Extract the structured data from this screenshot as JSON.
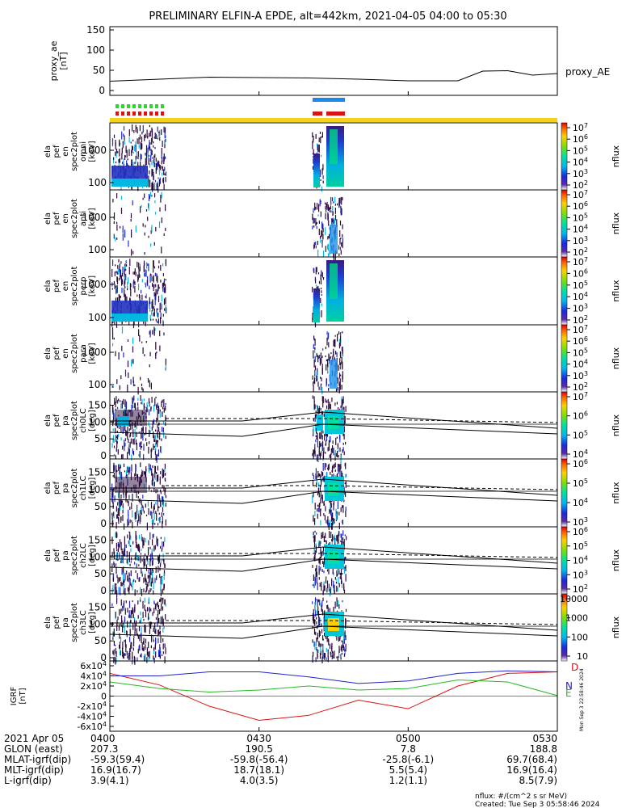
{
  "title": "PRELIMINARY ELFIN-A EPDE, alt=442km, 2021-04-05 04:00 to 05:30",
  "colors": {
    "orange_bar": "#f2d21e",
    "blue_bar": "#1e88e8",
    "red_bar": "#dd1111",
    "green_bar": "#22dd22",
    "bfield_D": "#dd1111",
    "bfield_N": "#2222cc",
    "bfield_E": "#22bb22"
  },
  "chart_data": [
    {
      "type": "line",
      "name": "proxy_ae",
      "ylabel": "proxy_ae\n[nT]",
      "legend": "proxy_AE",
      "ylim": [
        0,
        150
      ],
      "yticks": [
        "0",
        "50",
        "100",
        "150"
      ],
      "x_min": [
        0,
        10,
        20,
        30,
        40,
        50,
        60,
        70,
        75,
        80,
        85,
        90
      ],
      "y": [
        23,
        28,
        33,
        32,
        31,
        28,
        24,
        24,
        48,
        49,
        38,
        42
      ]
    },
    {
      "type": "heatmap",
      "name": "ela_pef_en_spec2plot_omni",
      "ylabel": "ela\npef\nen\nspec2plot\nomni\n[keV]",
      "yscale": "log",
      "yticks": [
        "100",
        "1000"
      ],
      "colorbar_label": "nflux",
      "colorbar_ticks": [
        "10^2",
        "10^3",
        "10^4",
        "10^5",
        "10^6",
        "10^7"
      ]
    },
    {
      "type": "heatmap",
      "name": "ela_pef_en_spec2plot_anti",
      "ylabel": "ela\npef\nen\nspec2plot\nanti\n[keV]",
      "yscale": "log",
      "yticks": [
        "100",
        "1000"
      ],
      "colorbar_label": "nflux",
      "colorbar_ticks": [
        "10^2",
        "10^3",
        "10^4",
        "10^5",
        "10^6",
        "10^7"
      ]
    },
    {
      "type": "heatmap",
      "name": "ela_pef_en_spec2plot_perp",
      "ylabel": "ela\npef\nen\nspec2plot\nperp\n[keV]",
      "yscale": "log",
      "yticks": [
        "100",
        "1000"
      ],
      "colorbar_label": "nflux",
      "colorbar_ticks": [
        "10^2",
        "10^3",
        "10^4",
        "10^5",
        "10^6",
        "10^7"
      ]
    },
    {
      "type": "heatmap",
      "name": "ela_pef_en_spec2plot_para",
      "ylabel": "ela\npef\nen\nspec2plot\npara\n[keV]",
      "yscale": "log",
      "yticks": [
        "100",
        "1000"
      ],
      "colorbar_label": "nflux",
      "colorbar_ticks": [
        "10^2",
        "10^3",
        "10^4",
        "10^5",
        "10^6",
        "10^7"
      ]
    },
    {
      "type": "heatmap",
      "name": "ela_pef_pa_spec2plot_ch0LC",
      "ylabel": "ela\npef\npa\nspec2plot\nch0LC\n[deg]",
      "ylim": [
        0,
        180
      ],
      "yticks": [
        "0",
        "50",
        "100",
        "150"
      ],
      "colorbar_label": "nflux",
      "colorbar_ticks": [
        "10^4",
        "10^5",
        "10^6",
        "10^7"
      ]
    },
    {
      "type": "heatmap",
      "name": "ela_pef_pa_spec2plot_ch1LC",
      "ylabel": "ela\npef\npa\nspec2plot\nch1LC\n[deg]",
      "ylim": [
        0,
        180
      ],
      "yticks": [
        "0",
        "50",
        "100",
        "150"
      ],
      "colorbar_label": "nflux",
      "colorbar_ticks": [
        "10^3",
        "10^4",
        "10^5",
        "10^6"
      ]
    },
    {
      "type": "heatmap",
      "name": "ela_pef_pa_spec2plot_ch2LC",
      "ylabel": "ela\npef\npa\nspec2plot\nch2LC\n[deg]",
      "ylim": [
        0,
        180
      ],
      "yticks": [
        "0",
        "50",
        "100",
        "150"
      ],
      "colorbar_label": "nflux",
      "colorbar_ticks": [
        "10^2",
        "10^3",
        "10^4",
        "10^5",
        "10^6"
      ]
    },
    {
      "type": "heatmap",
      "name": "ela_pef_pa_spec2plot_ch3LC",
      "ylabel": "ela\npef\npa\nspec2plot\nch3LC\n[deg]",
      "ylim": [
        0,
        180
      ],
      "yticks": [
        "0",
        "50",
        "100",
        "150"
      ],
      "colorbar_label": "nflux",
      "colorbar_ticks": [
        "10",
        "100",
        "1000",
        "10000"
      ]
    },
    {
      "type": "line",
      "name": "igrf",
      "ylabel": "IGRF\n[nT]",
      "ylim": [
        -60000,
        60000
      ],
      "yticks": [
        "-6x10^4",
        "-4x10^4",
        "-2x10^4",
        "0",
        "2x10^4",
        "4x10^4",
        "6x10^4"
      ],
      "x_min": [
        0,
        10,
        20,
        30,
        40,
        50,
        60,
        70,
        80,
        90
      ],
      "series": [
        {
          "name": "D",
          "values": [
            45000,
            22000,
            -20000,
            -48000,
            -38000,
            -8000,
            -25000,
            20000,
            45000,
            48000
          ]
        },
        {
          "name": "N",
          "values": [
            40000,
            40000,
            48000,
            48000,
            38000,
            25000,
            30000,
            45000,
            50000,
            48000
          ]
        },
        {
          "name": "E",
          "values": [
            28000,
            15000,
            8000,
            12000,
            20000,
            12000,
            15000,
            32000,
            28000,
            1000
          ]
        }
      ]
    }
  ],
  "ephemeris": {
    "rows": [
      {
        "label": "2021 Apr 05",
        "values": [
          "0400",
          "0430",
          "0500",
          "0530"
        ]
      },
      {
        "label": "GLON (east)",
        "values": [
          "207.3",
          "190.5",
          "7.8",
          "188.8"
        ]
      },
      {
        "label": "MLAT-igrf(dip)",
        "values": [
          "-59.3(59.4)",
          "-59.8(-56.4)",
          "-25.8(-6.1)",
          "69.7(68.4)"
        ]
      },
      {
        "label": "MLT-igrf(dip)",
        "values": [
          "16.9(16.7)",
          "18.7(18.1)",
          "5.5(5.4)",
          "16.9(16.4)"
        ]
      },
      {
        "label": "L-igrf(dip)",
        "values": [
          "3.9(4.1)",
          "4.0(3.5)",
          "1.2(1.1)",
          "8.5(7.9)"
        ]
      }
    ]
  },
  "footer": {
    "units": "nflux: #/(cm^2 s sr MeV)",
    "created": "Created: Tue Sep  3 05:58:46 2024",
    "side_stamp": "Mon Sep  3 22:58:46 2024"
  }
}
